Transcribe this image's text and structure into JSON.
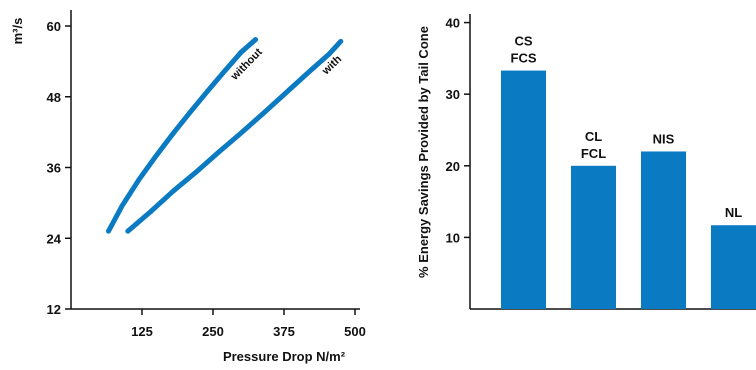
{
  "colors": {
    "series": "#0a7bc2",
    "axis": "#111111",
    "background": "#ffffff"
  },
  "chart_data": [
    {
      "type": "line",
      "title": "",
      "xlabel": "Pressure Drop N/m²",
      "ylabel": "m³/s",
      "xlim": [
        0,
        500
      ],
      "ylim": [
        12,
        60
      ],
      "xticks": [
        125,
        250,
        375,
        500
      ],
      "xtick_labels": [
        "125",
        "250",
        "375",
        "500"
      ],
      "yticks": [
        12,
        24,
        36,
        48,
        60
      ],
      "ytick_labels": [
        "12",
        "24",
        "36",
        "48",
        "60"
      ],
      "grid": false,
      "series": [
        {
          "name": "without",
          "points": [
            [
              66,
              25.2
            ],
            [
              90,
              29.5
            ],
            [
              120,
              34.0
            ],
            [
              150,
              38.0
            ],
            [
              180,
              41.8
            ],
            [
              210,
              45.4
            ],
            [
              240,
              48.9
            ],
            [
              270,
              52.3
            ],
            [
              300,
              55.6
            ],
            [
              325,
              57.7
            ]
          ]
        },
        {
          "name": "with",
          "points": [
            [
              100,
              25.2
            ],
            [
              140,
              28.5
            ],
            [
              180,
              32.0
            ],
            [
              220,
              35.2
            ],
            [
              260,
              38.6
            ],
            [
              300,
              41.9
            ],
            [
              340,
              45.3
            ],
            [
              380,
              48.8
            ],
            [
              420,
              52.3
            ],
            [
              455,
              55.3
            ],
            [
              475,
              57.4
            ]
          ]
        }
      ]
    },
    {
      "type": "bar",
      "title": "",
      "xlabel": "",
      "ylabel": "% Energy Savings Provided by Tail Cone",
      "ylim": [
        0,
        40
      ],
      "yticks": [
        10,
        20,
        30,
        40
      ],
      "ytick_labels": [
        "10",
        "20",
        "30",
        "40"
      ],
      "grid": false,
      "categories": [
        [
          "CS",
          "FCS"
        ],
        [
          "CL",
          "FCL"
        ],
        [
          "NIS"
        ],
        [
          "NL"
        ]
      ],
      "values": [
        33.3,
        20.0,
        22.0,
        11.7
      ]
    }
  ]
}
